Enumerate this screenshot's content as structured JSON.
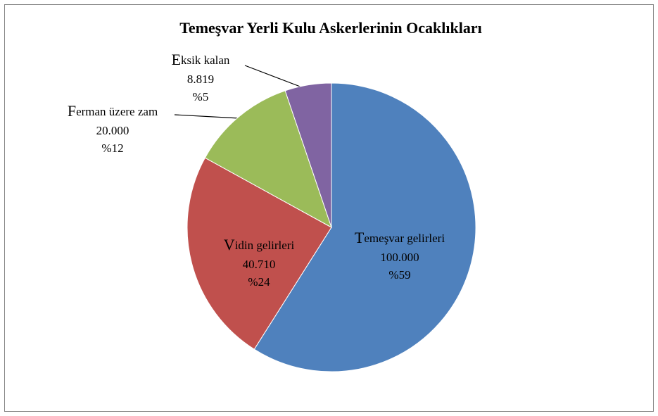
{
  "chart_data": {
    "type": "pie",
    "title": "Temeşvar Yerli Kulu Askerlerinin Ocaklıkları",
    "categories": [
      "Temeşvar gelirleri",
      "Vidin gelirleri",
      "Ferman üzere zam",
      "Eksik kalan"
    ],
    "values": [
      100000,
      40710,
      20000,
      8819
    ],
    "value_labels": [
      "100.000",
      "40.710",
      "20.000",
      "8.819"
    ],
    "percent_labels": [
      "%59",
      "%24",
      "%12",
      "%5"
    ],
    "colors": [
      "#4f81bd",
      "#c0504d",
      "#9bbb59",
      "#8064a2"
    ]
  }
}
